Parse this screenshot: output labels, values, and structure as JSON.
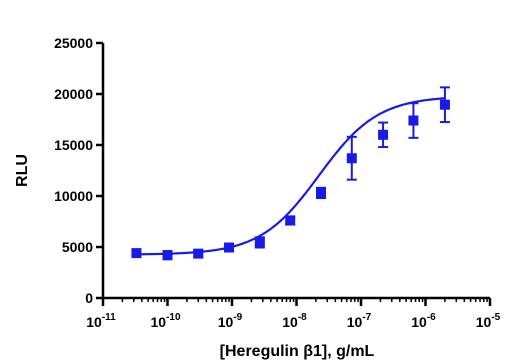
{
  "chart_data": {
    "type": "scatter",
    "title": "",
    "xlabel": "[Heregulin β1], g/mL",
    "ylabel": "RLU",
    "x_scale": "log",
    "xlim": [
      1e-11,
      1e-05
    ],
    "ylim": [
      0,
      25000
    ],
    "x_ticks": [
      {
        "base": "10",
        "exp": "-11",
        "value": 1e-11
      },
      {
        "base": "10",
        "exp": "-10",
        "value": 1e-10
      },
      {
        "base": "10",
        "exp": "-9",
        "value": 1e-09
      },
      {
        "base": "10",
        "exp": "-8",
        "value": 1e-08
      },
      {
        "base": "10",
        "exp": "-7",
        "value": 1e-07
      },
      {
        "base": "10",
        "exp": "-6",
        "value": 1e-06
      },
      {
        "base": "10",
        "exp": "-5",
        "value": 1e-05
      }
    ],
    "y_ticks": [
      0,
      5000,
      10000,
      15000,
      20000,
      25000
    ],
    "grid": false,
    "legend": "none",
    "series": [
      {
        "color": "#1a1ae6",
        "marker": "square",
        "fit": "sigmoidal",
        "points": [
          {
            "x": 3.3e-11,
            "y": 4400,
            "err": 250
          },
          {
            "x": 1e-10,
            "y": 4200,
            "err": 400
          },
          {
            "x": 3e-10,
            "y": 4350,
            "err": 350
          },
          {
            "x": 9e-10,
            "y": 4950,
            "err": 300
          },
          {
            "x": 2.7e-09,
            "y": 5450,
            "err": 500
          },
          {
            "x": 8e-09,
            "y": 7600,
            "err": 400
          },
          {
            "x": 2.4e-08,
            "y": 10300,
            "err": 500
          },
          {
            "x": 7.2e-08,
            "y": 13700,
            "err": 2100
          },
          {
            "x": 2.2e-07,
            "y": 16000,
            "err": 1200
          },
          {
            "x": 6.5e-07,
            "y": 17400,
            "err": 1700
          },
          {
            "x": 2e-06,
            "y": 18950,
            "err": 1700
          }
        ],
        "fit_params": {
          "bottom": 4250,
          "top": 19800,
          "log_ec50": -7.65,
          "hill": 0.95
        }
      }
    ]
  }
}
